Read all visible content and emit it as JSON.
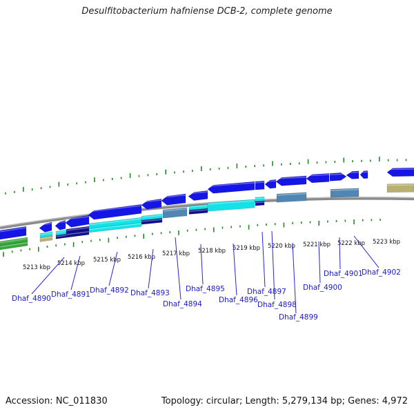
{
  "title": "Desulfitobacterium hafniense DCB-2, complete genome",
  "footer": {
    "accession": "Accession: NC_011830",
    "summary": "Topology: circular; Length: 5,279,134 bp; Genes: 4,972"
  },
  "colors": {
    "backbone": "#8a8a8a",
    "ticks": "#1f8a1f",
    "cds": "#1515e6",
    "gene_label": "#1a1acc",
    "leader_line": "#2323d8",
    "cyan": "#13e3e8",
    "navy": "#10108c",
    "steel": "#4f86b3",
    "khaki": "#b8b070",
    "green": "#34a83a"
  },
  "kbp_labels": [
    "5213 kbp",
    "5214 kbp",
    "5215 kbp",
    "5216 kbp",
    "5217 kbp",
    "5218 kbp",
    "5219 kbp",
    "5220 kbp",
    "5221 kbp",
    "5222 kbp",
    "5223 kbp"
  ],
  "genes": [
    "Dhaf_4890",
    "Dhaf_4891",
    "Dhaf_4892",
    "Dhaf_4893",
    "Dhaf_4894",
    "Dhaf_4895",
    "Dhaf_4896",
    "Dhaf_4897",
    "Dhaf_4898",
    "Dhaf_4899",
    "Dhaf_4900",
    "Dhaf_4901",
    "Dhaf_4902"
  ]
}
